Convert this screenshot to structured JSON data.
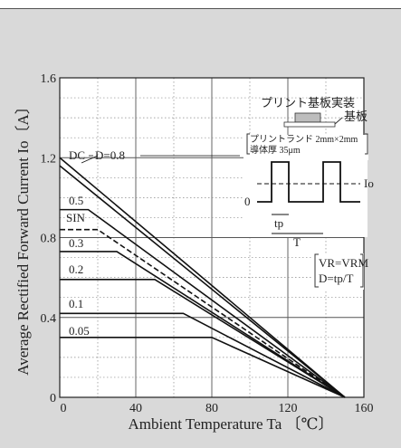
{
  "chart_data": {
    "type": "line",
    "xlabel": "Ambient Temperature  Ta 〔℃〕",
    "ylabel": "Average Rectified Forward Current  Io〔A〕",
    "xlim": [
      0,
      160
    ],
    "ylim": [
      0,
      1.6
    ],
    "x_ticks": [
      "0",
      "40",
      "80",
      "120",
      "160"
    ],
    "y_ticks": [
      "0",
      "0.4",
      "0.8",
      "1.2",
      "1.6"
    ],
    "grid": "dotted",
    "series": [
      {
        "name": "DC",
        "x": [
          0,
          150
        ],
        "y": [
          1.2,
          0
        ]
      },
      {
        "name": "D=0.8",
        "x": [
          0,
          150
        ],
        "y": [
          1.16,
          0
        ]
      },
      {
        "name": "0.5",
        "x": [
          0,
          15,
          150
        ],
        "y": [
          0.94,
          0.94,
          0
        ]
      },
      {
        "name": "SIN",
        "x": [
          0,
          20,
          150
        ],
        "y": [
          0.84,
          0.84,
          0
        ],
        "dashed": true
      },
      {
        "name": "0.3",
        "x": [
          0,
          30,
          150
        ],
        "y": [
          0.73,
          0.73,
          0
        ]
      },
      {
        "name": "0.2",
        "x": [
          0,
          50,
          150
        ],
        "y": [
          0.59,
          0.59,
          0
        ]
      },
      {
        "name": "0.1",
        "x": [
          0,
          65,
          150
        ],
        "y": [
          0.42,
          0.42,
          0
        ]
      },
      {
        "name": "0.05",
        "x": [
          0,
          80,
          150
        ],
        "y": [
          0.3,
          0.3,
          0
        ]
      }
    ],
    "annotations": {
      "pcb_title": "プリント基板実装",
      "substrate_label": "基板",
      "land_line1": "プリントランド 2mm×2mm",
      "land_line2": "導体厚 35μm",
      "waveform_zero": "0",
      "waveform_io": "Io",
      "waveform_tp": "tp",
      "waveform_T": "T",
      "condition1": "VR=VRM",
      "condition2": "D=tp/T"
    }
  }
}
